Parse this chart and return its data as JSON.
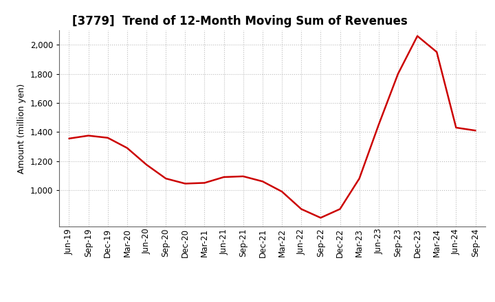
{
  "title": "[3779]  Trend of 12-Month Moving Sum of Revenues",
  "ylabel": "Amount (million yen)",
  "line_color": "#cc0000",
  "line_width": 1.8,
  "background_color": "#ffffff",
  "grid_color": "#bbbbbb",
  "x_labels": [
    "Jun-19",
    "Sep-19",
    "Dec-19",
    "Mar-20",
    "Jun-20",
    "Sep-20",
    "Dec-20",
    "Mar-21",
    "Jun-21",
    "Sep-21",
    "Dec-21",
    "Mar-22",
    "Jun-22",
    "Sep-22",
    "Dec-22",
    "Mar-23",
    "Jun-23",
    "Sep-23",
    "Dec-23",
    "Mar-24",
    "Jun-24",
    "Sep-24"
  ],
  "values": [
    1355,
    1375,
    1360,
    1290,
    1175,
    1080,
    1045,
    1050,
    1090,
    1095,
    1060,
    990,
    870,
    810,
    870,
    1080,
    1450,
    1800,
    2060,
    1950,
    1430,
    1410
  ],
  "ylim_min": 750,
  "ylim_max": 2100,
  "yticks": [
    1000,
    1200,
    1400,
    1600,
    1800,
    2000
  ],
  "title_fontsize": 12,
  "tick_fontsize": 8.5,
  "ylabel_fontsize": 9
}
